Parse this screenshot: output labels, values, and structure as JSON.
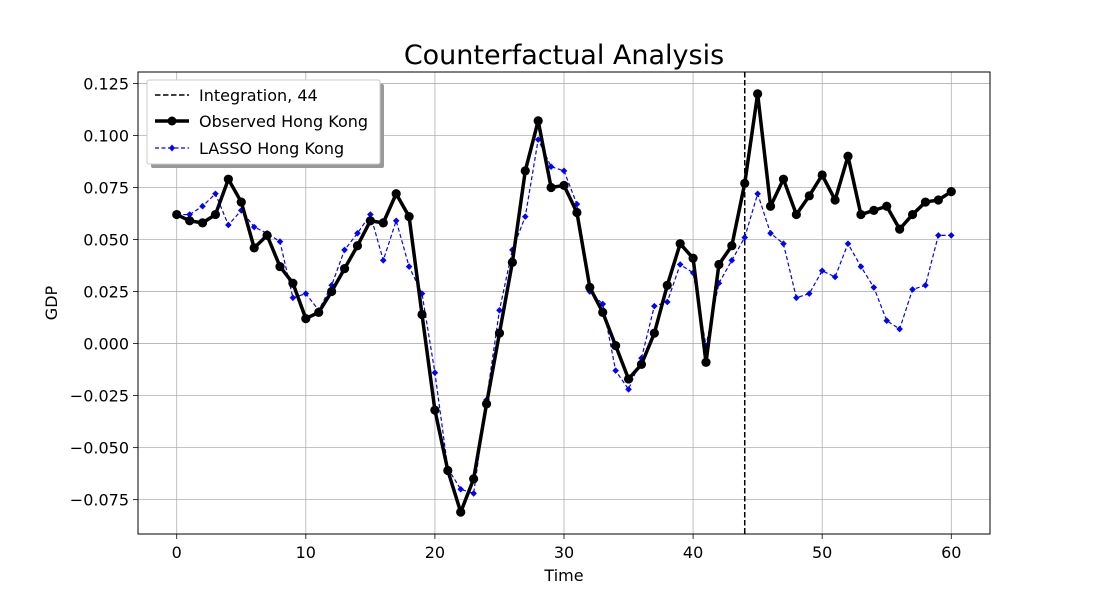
{
  "chart_data": {
    "type": "line",
    "title": "Counterfactual Analysis",
    "xlabel": "Time",
    "ylabel": "GDP",
    "xlim": [
      -3,
      63
    ],
    "ylim": [
      -0.0915,
      0.1305
    ],
    "xticks": [
      0,
      10,
      20,
      30,
      40,
      50,
      60
    ],
    "xtick_labels": [
      "0",
      "10",
      "20",
      "30",
      "40",
      "50",
      "60"
    ],
    "yticks": [
      -0.075,
      -0.05,
      -0.025,
      0.0,
      0.025,
      0.05,
      0.075,
      0.1,
      0.125
    ],
    "ytick_labels": [
      "−0.075",
      "−0.050",
      "−0.025",
      "0.000",
      "0.025",
      "0.050",
      "0.075",
      "0.100",
      "0.125"
    ],
    "grid": true,
    "legend_position": "upper-left",
    "vline": {
      "x": 44,
      "label": "Integration, 44",
      "color": "#000000",
      "style": "dashed"
    },
    "x": [
      0,
      1,
      2,
      3,
      4,
      5,
      6,
      7,
      8,
      9,
      10,
      11,
      12,
      13,
      14,
      15,
      16,
      17,
      18,
      19,
      20,
      21,
      22,
      23,
      24,
      25,
      26,
      27,
      28,
      29,
      30,
      31,
      32,
      33,
      34,
      35,
      36,
      37,
      38,
      39,
      40,
      41,
      42,
      43,
      44,
      45,
      46,
      47,
      48,
      49,
      50,
      51,
      52,
      53,
      54,
      55,
      56,
      57,
      58,
      59,
      60
    ],
    "series": [
      {
        "name": "Observed Hong Kong",
        "color": "#000000",
        "style": "solid",
        "marker": "circle",
        "values": [
          0.062,
          0.059,
          0.058,
          0.062,
          0.079,
          0.068,
          0.046,
          0.052,
          0.037,
          0.029,
          0.012,
          0.015,
          0.025,
          0.036,
          0.047,
          0.059,
          0.058,
          0.072,
          0.061,
          0.014,
          -0.032,
          -0.061,
          -0.081,
          -0.065,
          -0.029,
          0.005,
          0.039,
          0.083,
          0.107,
          0.075,
          0.076,
          0.063,
          0.027,
          0.015,
          -0.001,
          -0.017,
          -0.01,
          0.005,
          0.028,
          0.048,
          0.041,
          -0.009,
          0.038,
          0.047,
          0.077,
          0.12,
          0.066,
          0.079,
          0.062,
          0.071,
          0.081,
          0.069,
          0.09,
          0.062,
          0.064,
          0.066,
          0.055,
          0.062,
          0.068,
          0.069,
          0.073
        ]
      },
      {
        "name": "LASSO Hong Kong",
        "color": "#0000ff",
        "style": "dashed",
        "marker": "diamond",
        "values": [
          0.062,
          0.062,
          0.066,
          0.072,
          0.057,
          0.064,
          0.056,
          0.053,
          0.049,
          0.022,
          0.024,
          0.016,
          0.028,
          0.045,
          0.053,
          0.062,
          0.04,
          0.059,
          0.037,
          0.024,
          -0.014,
          -0.06,
          -0.07,
          -0.072,
          -0.027,
          0.016,
          0.045,
          0.061,
          0.098,
          0.085,
          0.083,
          0.067,
          0.025,
          0.019,
          -0.013,
          -0.022,
          -0.007,
          0.018,
          0.02,
          0.038,
          0.034,
          -0.001,
          0.029,
          0.04,
          0.051,
          0.072,
          0.053,
          0.048,
          0.022,
          0.024,
          0.035,
          0.032,
          0.048,
          0.037,
          0.027,
          0.011,
          0.007,
          0.026,
          0.028,
          0.052,
          0.052
        ]
      }
    ]
  }
}
